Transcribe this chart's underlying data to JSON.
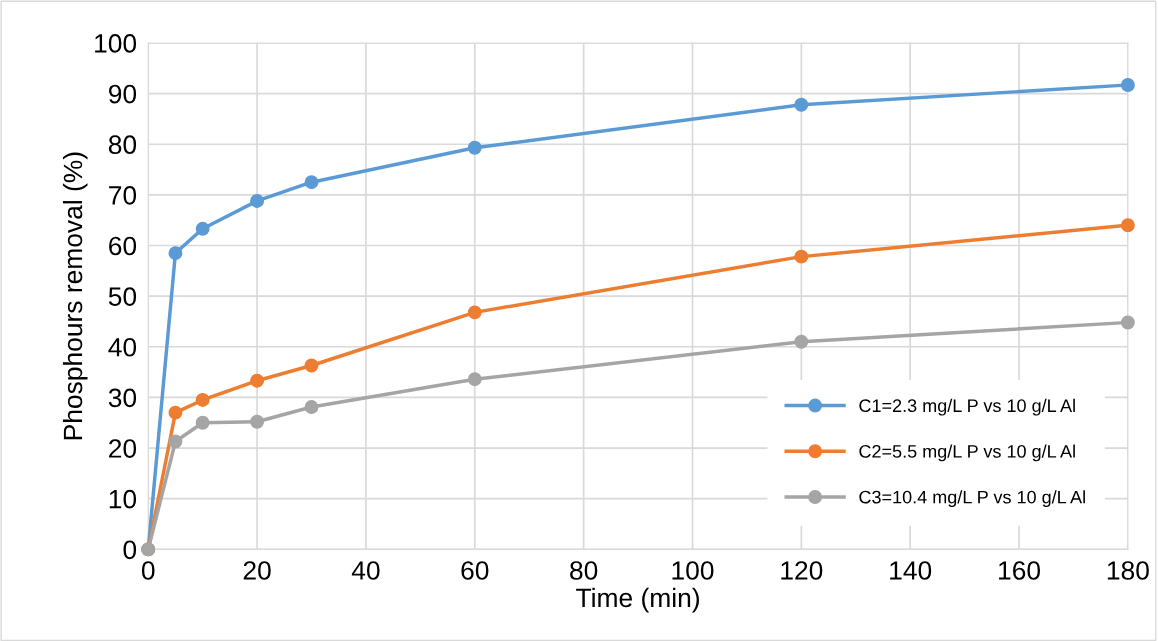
{
  "chart_data": {
    "type": "line",
    "xlabel": "Time (min)",
    "ylabel": "Phosphours removal (%)",
    "x": [
      0,
      5,
      10,
      20,
      30,
      60,
      120,
      180
    ],
    "series": [
      {
        "name": "C1=2.3 mg/L P vs 10 g/L Al",
        "color": "#5b9bd5",
        "values": [
          0,
          58.5,
          63.3,
          68.8,
          72.5,
          79.3,
          87.8,
          91.7
        ]
      },
      {
        "name": "C2=5.5 mg/L P vs 10 g/L Al",
        "color": "#ed7d31",
        "values": [
          0,
          27,
          29.5,
          33.3,
          36.3,
          46.8,
          57.8,
          64
        ]
      },
      {
        "name": "C3=10.4 mg/L P vs 10 g/L Al",
        "color": "#a5a5a5",
        "values": [
          0,
          21.3,
          25,
          25.2,
          28.1,
          33.6,
          41,
          44.8
        ]
      }
    ],
    "xlim": [
      0,
      180
    ],
    "xticks": [
      0,
      20,
      40,
      60,
      80,
      100,
      120,
      140,
      160,
      180
    ],
    "ylim": [
      0,
      100
    ],
    "yticks": [
      0,
      10,
      20,
      30,
      40,
      50,
      60,
      70,
      80,
      90,
      100
    ],
    "grid": true,
    "legend": "bottom right",
    "marker": "circle",
    "line_style": "solid"
  }
}
